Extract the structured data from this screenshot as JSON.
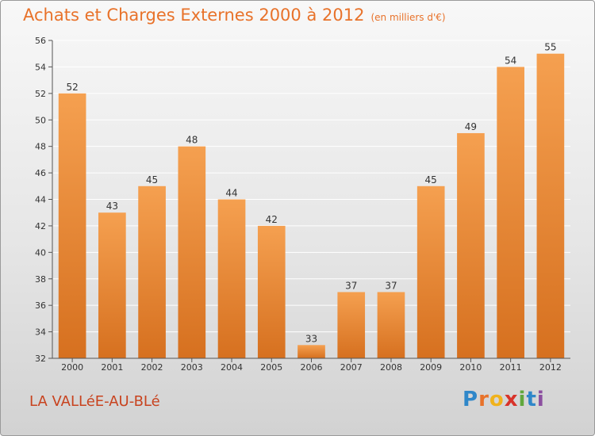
{
  "chart_data": {
    "type": "bar",
    "title": "Achats et Charges Externes 2000 à 2012",
    "subtitle": "(en milliers d'€)",
    "categories": [
      "2000",
      "2001",
      "2002",
      "2003",
      "2004",
      "2005",
      "2006",
      "2007",
      "2008",
      "2009",
      "2010",
      "2011",
      "2012"
    ],
    "values": [
      52,
      43,
      45,
      48,
      44,
      42,
      33,
      37,
      37,
      45,
      49,
      54,
      55
    ],
    "ylim": [
      32,
      56
    ],
    "yticks": [
      32,
      34,
      36,
      38,
      40,
      42,
      44,
      46,
      48,
      50,
      52,
      54,
      56
    ],
    "grid": true,
    "bar_color_top": "#f5a050",
    "bar_color_bottom": "#d6701f"
  },
  "location": "LA VALLéE-AU-BLé",
  "logo_letters": [
    "P",
    "r",
    "o",
    "x",
    "i",
    "t",
    "i"
  ]
}
